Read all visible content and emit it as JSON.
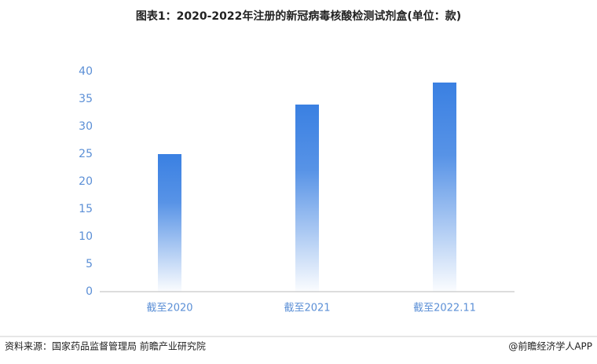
{
  "chart_data": {
    "type": "bar",
    "title": "图表1：2020-2022年注册的新冠病毒核酸检测试剂盒(单位：款)",
    "categories": [
      "截至2020",
      "截至2021",
      "截至2022.11"
    ],
    "values": [
      25,
      34,
      38
    ],
    "color": "#3a80e2",
    "ylim": [
      0,
      40
    ],
    "yticks": [
      0,
      5,
      10,
      15,
      20,
      25,
      30,
      35,
      40
    ],
    "grid": false,
    "source": "资料来源：国家药品监督管理局 前瞻产业研究院",
    "credit": "@前瞻经济学人APP"
  }
}
